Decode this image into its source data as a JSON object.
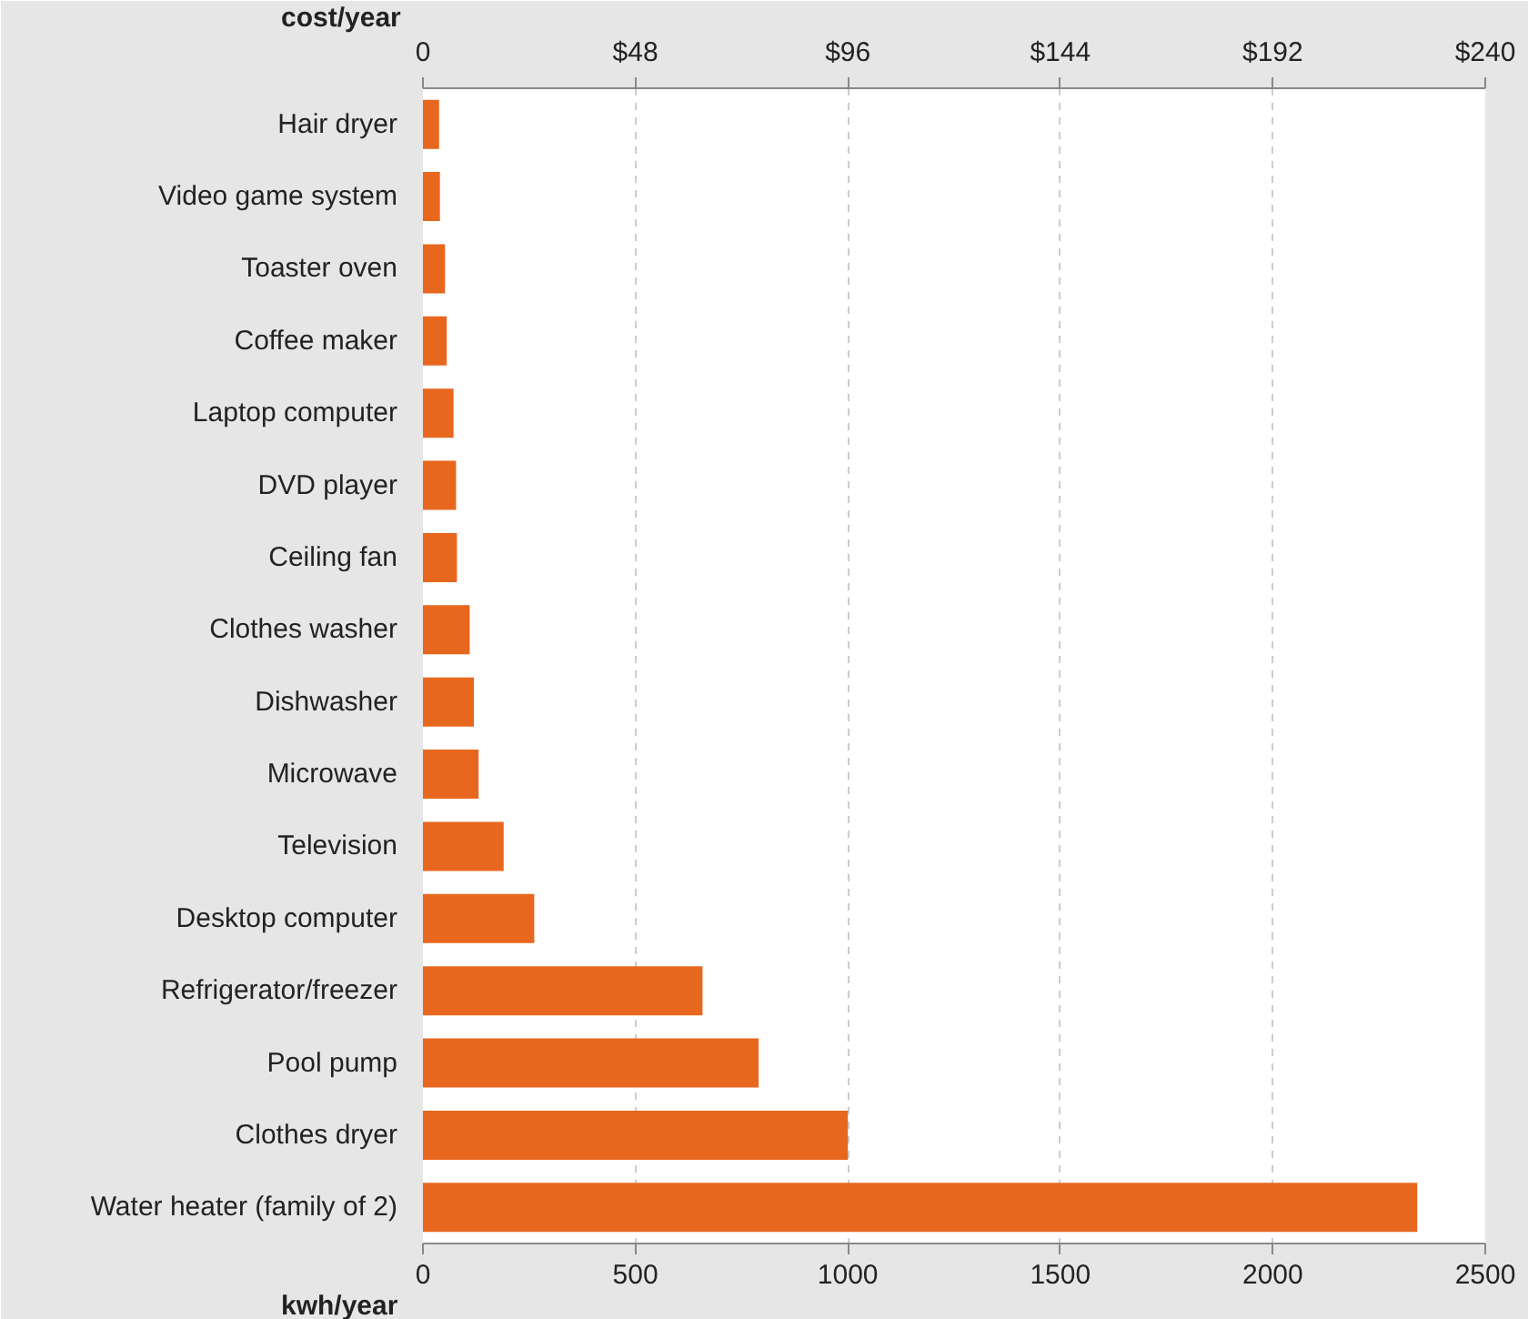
{
  "chart_data": {
    "type": "bar",
    "orientation": "horizontal",
    "categories": [
      "Hair dryer",
      "Video game system",
      "Toaster oven",
      "Coffee maker",
      "Laptop computer",
      "DVD player",
      "Ceiling fan",
      "Clothes washer",
      "Dishwasher",
      "Microwave",
      "Television",
      "Desktop computer",
      "Refrigerator/freezer",
      "Pool pump",
      "Clothes dryer",
      "Water heater (family of 2)"
    ],
    "values": [
      38,
      40,
      52,
      56,
      72,
      78,
      80,
      110,
      120,
      131,
      190,
      262,
      658,
      790,
      1000,
      2340
    ],
    "color": "#e8671e",
    "xlabel": "kwh/year",
    "xlim": [
      0,
      2500
    ],
    "xticks": [
      0,
      500,
      1000,
      1500,
      2000,
      2500
    ],
    "x2label": "cost/year",
    "x2lim": [
      0,
      240
    ],
    "x2ticks": [
      0,
      {
        "value": 48,
        "label": "$48"
      },
      {
        "value": 96,
        "label": "$96"
      },
      {
        "value": 144,
        "label": "$144"
      },
      {
        "value": 192,
        "label": "$192"
      },
      {
        "value": 240,
        "label": "$240"
      }
    ],
    "grid": "x"
  }
}
